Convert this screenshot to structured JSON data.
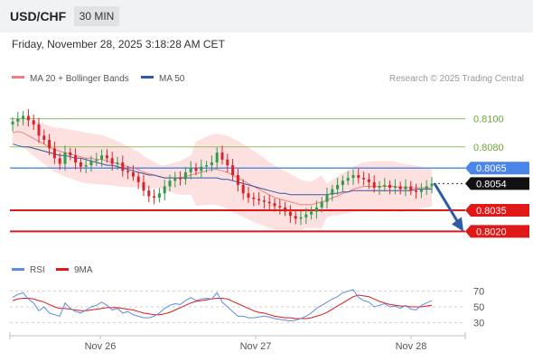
{
  "header": {
    "symbol": "USD/CHF",
    "timeframe": "30 MIN"
  },
  "datetime": "Friday, November 28, 2025 3:18:28 AM CET",
  "legend": {
    "ma20_label": "MA 20 + Bollinger Bands",
    "ma50_label": "MA 50",
    "credit": "Research © 2025 Trading Central"
  },
  "rsi_legend": {
    "rsi_label": "RSI",
    "ma_label": "9MA"
  },
  "colors": {
    "ma20": "#f08080",
    "ma50": "#2e5aa8",
    "bands": "#fde0e0",
    "up": "#2e9d4a",
    "down": "#d8232a",
    "green_level": "#8fbf5a",
    "blue_level": "#4a86e8",
    "red_level": "#e01818",
    "arrow": "#2e5aa8",
    "rsi": "#5b8de0",
    "rsi_ma": "#e01818"
  },
  "chart_data": {
    "type": "candlestick",
    "x_tick_labels": [
      "Nov 26",
      "Nov 27",
      "Nov 28"
    ],
    "y_range": [
      0.801,
      0.811
    ],
    "levels": [
      {
        "label": "0.8100",
        "value": 0.81,
        "kind": "resistance"
      },
      {
        "label": "0.8080",
        "value": 0.808,
        "kind": "resistance"
      },
      {
        "label": "0.8065",
        "value": 0.8065,
        "kind": "pivot"
      },
      {
        "label": "0.8054",
        "value": 0.8054,
        "kind": "last"
      },
      {
        "label": "0.8035",
        "value": 0.8035,
        "kind": "support"
      },
      {
        "label": "0.8020",
        "value": 0.802,
        "kind": "target"
      }
    ],
    "arrow": {
      "from": 0.8054,
      "to": 0.802
    },
    "close_series": [
      0.8098,
      0.81,
      0.8102,
      0.8099,
      0.8096,
      0.8088,
      0.8085,
      0.8079,
      0.8072,
      0.8068,
      0.8076,
      0.8074,
      0.8069,
      0.8066,
      0.8067,
      0.807,
      0.8071,
      0.8074,
      0.8072,
      0.8068,
      0.8069,
      0.8063,
      0.8062,
      0.8059,
      0.8055,
      0.8049,
      0.8045,
      0.8044,
      0.8047,
      0.8052,
      0.8056,
      0.8058,
      0.8057,
      0.8062,
      0.8065,
      0.8063,
      0.8066,
      0.8067,
      0.8069,
      0.8076,
      0.8071,
      0.8067,
      0.806,
      0.8053,
      0.8047,
      0.8044,
      0.8043,
      0.8042,
      0.8041,
      0.804,
      0.8038,
      0.8037,
      0.8034,
      0.8031,
      0.8029,
      0.803,
      0.8032,
      0.8034,
      0.8037,
      0.8041,
      0.8046,
      0.805,
      0.8053,
      0.8056,
      0.8058,
      0.806,
      0.8058,
      0.8057,
      0.8055,
      0.8051,
      0.8052,
      0.8053,
      0.8051,
      0.8052,
      0.805,
      0.8052,
      0.8049,
      0.8048,
      0.805,
      0.8052,
      0.8054
    ],
    "ma20_series": [
      0.809,
      0.8091,
      0.809,
      0.8088,
      0.8086,
      0.8084,
      0.8082,
      0.808,
      0.8078,
      0.8077,
      0.8076,
      0.8075,
      0.8074,
      0.8073,
      0.8072,
      0.8072,
      0.8071,
      0.8071,
      0.807,
      0.8069,
      0.8068,
      0.8067,
      0.8066,
      0.8065,
      0.8064,
      0.8062,
      0.8061,
      0.806,
      0.8059,
      0.8058,
      0.8058,
      0.8058,
      0.8058,
      0.8059,
      0.806,
      0.8061,
      0.8062,
      0.8063,
      0.8064,
      0.8064,
      0.8063,
      0.8062,
      0.806,
      0.8058,
      0.8056,
      0.8054,
      0.8052,
      0.805,
      0.8048,
      0.8046,
      0.8044,
      0.8043,
      0.8042,
      0.8041,
      0.804,
      0.8039,
      0.8039,
      0.8039,
      0.804,
      0.8041,
      0.8042,
      0.8044,
      0.8045,
      0.8047,
      0.8048,
      0.805,
      0.8051,
      0.8052,
      0.8052,
      0.8052,
      0.8052,
      0.8052,
      0.8052,
      0.8052,
      0.8051,
      0.8051,
      0.8051,
      0.8051,
      0.8051,
      0.8051,
      0.8051
    ],
    "ma50_series": [
      0.8082,
      0.8081,
      0.808,
      0.808,
      0.8079,
      0.8078,
      0.8077,
      0.8076,
      0.8075,
      0.8074,
      0.8074,
      0.8073,
      0.8072,
      0.8072,
      0.8071,
      0.807,
      0.8069,
      0.8068,
      0.8067,
      0.8067,
      0.8066,
      0.8065,
      0.8064,
      0.8063,
      0.8062,
      0.8061,
      0.806,
      0.806,
      0.8059,
      0.8058,
      0.8058,
      0.8058,
      0.8058,
      0.8058,
      0.8058,
      0.8058,
      0.8058,
      0.8058,
      0.8058,
      0.8058,
      0.8057,
      0.8057,
      0.8056,
      0.8055,
      0.8054,
      0.8053,
      0.8052,
      0.8051,
      0.805,
      0.8049,
      0.8048,
      0.8047,
      0.8047,
      0.8046,
      0.8046,
      0.8046,
      0.8046,
      0.8046,
      0.8046,
      0.8046,
      0.8046,
      0.8047,
      0.8047,
      0.8048,
      0.8048,
      0.8049,
      0.8049,
      0.8049,
      0.8049,
      0.8049,
      0.8049,
      0.8049,
      0.8049,
      0.8049,
      0.8049,
      0.8049,
      0.8049,
      0.805,
      0.805,
      0.805,
      0.805
    ],
    "rsi": {
      "y_tick_labels": [
        "70",
        "50",
        "30"
      ],
      "y_range": [
        20,
        80
      ],
      "values": [
        62,
        66,
        68,
        60,
        55,
        45,
        50,
        42,
        40,
        38,
        55,
        48,
        44,
        42,
        46,
        50,
        52,
        56,
        52,
        46,
        48,
        42,
        44,
        40,
        38,
        36,
        36,
        38,
        42,
        48,
        52,
        54,
        53,
        58,
        62,
        58,
        60,
        61,
        60,
        68,
        56,
        50,
        44,
        38,
        38,
        36,
        36,
        37,
        38,
        37,
        35,
        34,
        33,
        32,
        33,
        35,
        38,
        42,
        48,
        52,
        56,
        60,
        63,
        68,
        70,
        72,
        62,
        58,
        56,
        50,
        52,
        54,
        50,
        51,
        48,
        52,
        47,
        46,
        52,
        55,
        58
      ],
      "ma_values": [
        58,
        60,
        61,
        61,
        60,
        58,
        56,
        53,
        50,
        48,
        48,
        47,
        46,
        45,
        45,
        46,
        47,
        48,
        49,
        49,
        49,
        48,
        47,
        46,
        44,
        42,
        41,
        40,
        40,
        41,
        43,
        46,
        49,
        52,
        55,
        57,
        58,
        59,
        60,
        61,
        61,
        60,
        57,
        54,
        51,
        48,
        45,
        43,
        42,
        40,
        38,
        37,
        36,
        36,
        35,
        35,
        35,
        36,
        38,
        40,
        43,
        47,
        51,
        55,
        59,
        63,
        65,
        64,
        63,
        60,
        57,
        55,
        53,
        52,
        51,
        51,
        50,
        50,
        50,
        51,
        52
      ]
    }
  }
}
